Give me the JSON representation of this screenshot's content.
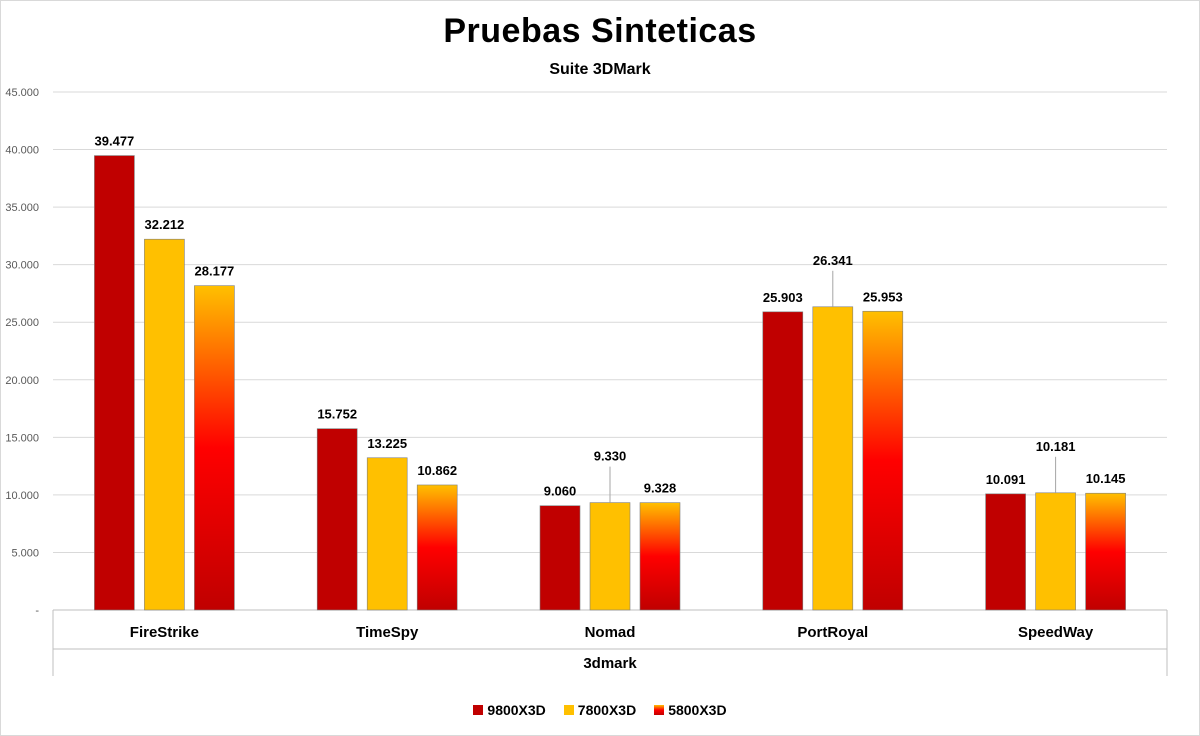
{
  "chart_data": {
    "type": "bar",
    "title": "Pruebas Sinteticas",
    "subtitle": "Suite 3DMark",
    "xlabel": "3dmark",
    "ylabel": "",
    "ylim": [
      0,
      45000
    ],
    "yticks": [
      "-",
      "5.000",
      "10.000",
      "15.000",
      "20.000",
      "25.000",
      "30.000",
      "35.000",
      "40.000",
      "45.000"
    ],
    "categories": [
      "FireStrike",
      "TimeSpy",
      "Nomad",
      "PortRoyal",
      "SpeedWay"
    ],
    "series": [
      {
        "name": "9800X3D",
        "values": [
          39477,
          15752,
          9060,
          25903,
          10091
        ],
        "labels": [
          "39.477",
          "15.752",
          "9.060",
          "25.903",
          "10.091"
        ],
        "color": "#c00000"
      },
      {
        "name": "7800X3D",
        "values": [
          32212,
          13225,
          9330,
          26341,
          10181
        ],
        "labels": [
          "32.212",
          "13.225",
          "9.330",
          "26.341",
          "10.181"
        ],
        "color": "#ffc000"
      },
      {
        "name": "5800X3D",
        "values": [
          28177,
          10862,
          9328,
          25953,
          10145
        ],
        "labels": [
          "28.177",
          "10.862",
          "9.328",
          "25.953",
          "10.145"
        ],
        "color": "#ff0000",
        "gradient": [
          "#ffc000",
          "#ff0000",
          "#c00000"
        ]
      }
    ],
    "grid": true,
    "legend": "bottom"
  }
}
